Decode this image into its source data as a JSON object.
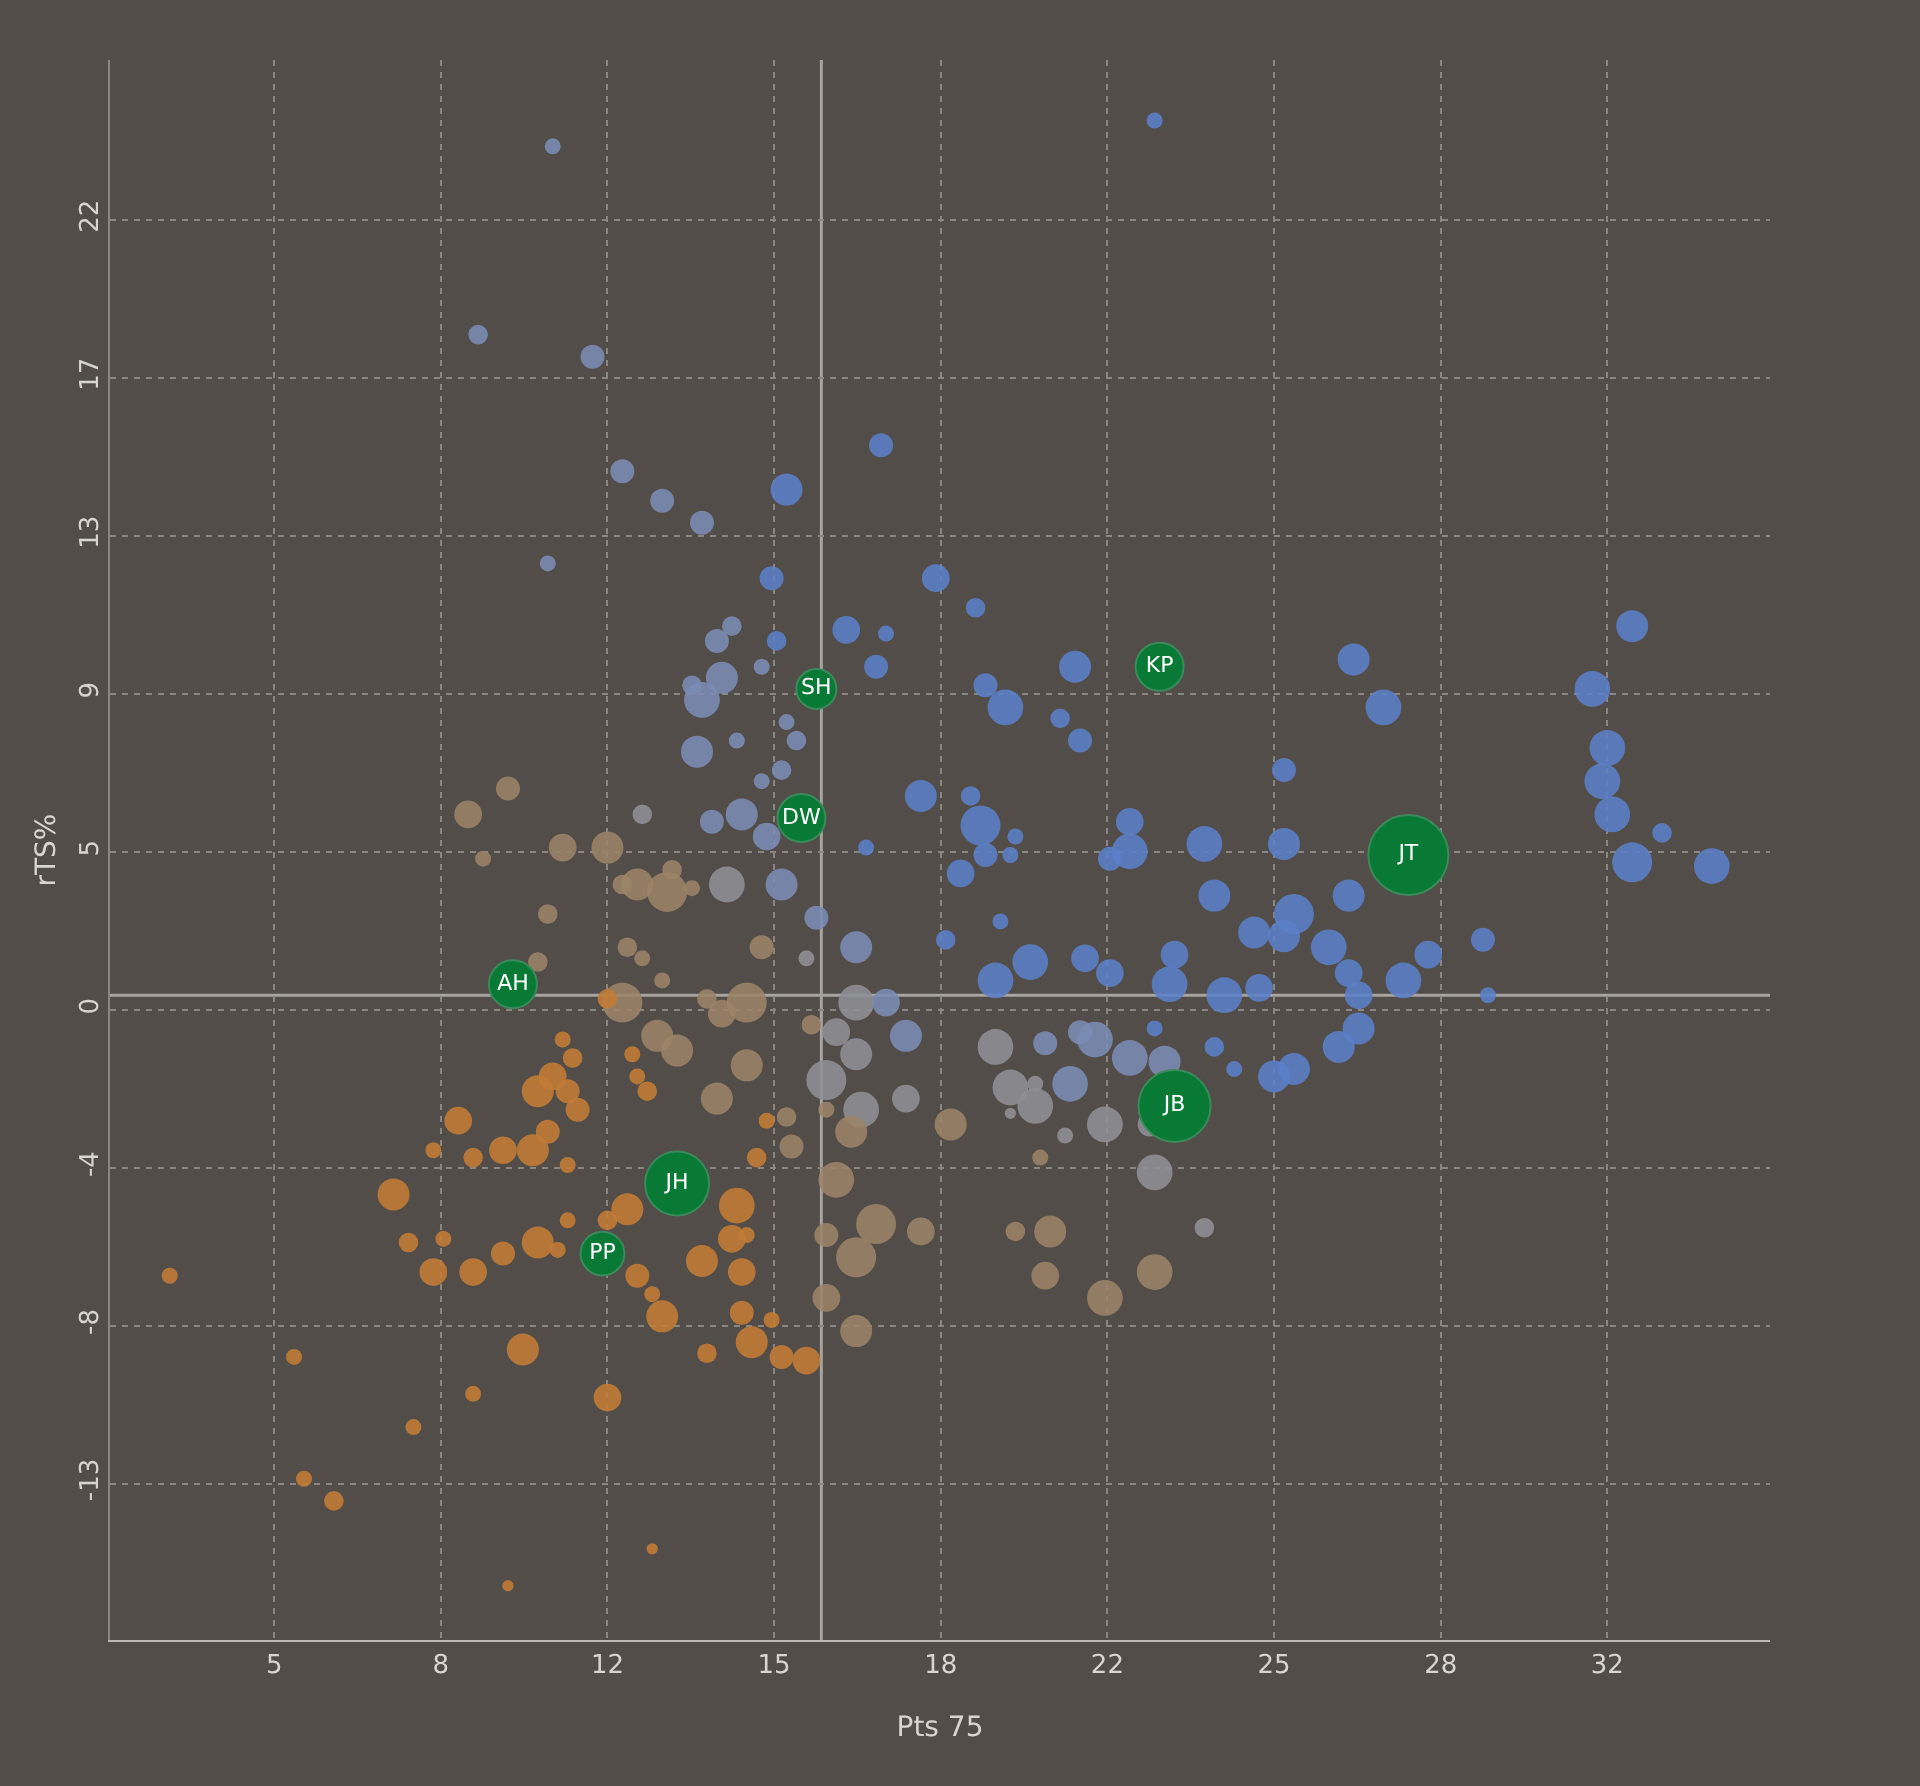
{
  "chart_data": {
    "type": "bubble",
    "xlabel": "Pts 75",
    "ylabel": "rTS%",
    "xlim": [
      1.7,
      35.07
    ],
    "ylim": [
      -16.77,
      26.04
    ],
    "xticks": [
      {
        "value": 5,
        "label": "5"
      },
      {
        "value": 8.35,
        "label": "8"
      },
      {
        "value": 11.7,
        "label": "12"
      },
      {
        "value": 15.05,
        "label": "15"
      },
      {
        "value": 18.4,
        "label": "18"
      },
      {
        "value": 21.75,
        "label": "22"
      },
      {
        "value": 25.1,
        "label": "25"
      },
      {
        "value": 28.45,
        "label": "28"
      },
      {
        "value": 31.8,
        "label": "32"
      }
    ],
    "yticks": [
      {
        "value": -12.54,
        "label": "-13"
      },
      {
        "value": -8.26,
        "label": "-8"
      },
      {
        "value": -3.98,
        "label": "-4"
      },
      {
        "value": 0.3,
        "label": "0"
      },
      {
        "value": 4.58,
        "label": "5"
      },
      {
        "value": 8.86,
        "label": "9"
      },
      {
        "value": 13.14,
        "label": "13"
      },
      {
        "value": 17.42,
        "label": "17"
      },
      {
        "value": 21.7,
        "label": "22"
      }
    ],
    "grid": true,
    "ref_lines": [
      {
        "axis": "x",
        "value": 16.0,
        "color": "#a7a4a0"
      },
      {
        "axis": "y",
        "value": 0.7,
        "color": "#a7a4a0"
      }
    ],
    "series": [
      {
        "x": [
          10.6,
          22.7,
          9.1,
          11.4,
          12.0,
          12.8,
          13.6,
          10.5,
          15.3,
          17.2,
          15.0,
          18.3,
          14.2,
          13.9,
          15.1,
          16.5,
          17.3,
          14.8,
          17.1,
          14.0,
          13.6,
          13.4,
          15.3,
          14.3,
          15.5,
          13.5,
          15.2,
          14.8,
          18.0,
          9.7,
          8.9,
          12.4,
          13.8,
          14.4,
          14.9,
          16.9,
          10.8,
          11.7,
          9.2,
          19.1,
          21.1,
          26.7,
          32.3,
          19.3,
          19.7,
          20.8,
          21.2,
          27.3,
          31.5,
          31.8,
          31.7,
          31.9,
          32.9,
          25.3,
          19.0,
          19.2,
          19.9,
          22.2,
          23.7,
          25.3,
          32.3,
          33.9,
          22.2,
          21.8,
          19.3,
          19.8,
          18.8,
          19.6,
          18.5,
          20.2,
          19.5,
          21.3,
          21.8,
          23.1,
          23.0,
          23.9,
          24.7,
          25.5,
          25.3,
          26.6,
          26.2,
          26.6,
          26.8,
          24.1,
          24.8,
          27.7,
          28.2,
          29.3,
          29.4,
          26.8,
          26.4,
          19.5,
          20.5,
          21.5,
          21.2,
          22.2,
          22.7,
          22.9,
          23.9,
          24.3,
          25.1,
          25.5,
          19.8,
          20.3,
          20.3,
          21.0,
          21.7,
          20.9,
          22.6,
          19.8,
          20.4,
          18.6,
          22.7,
          23.7,
          19.9,
          20.6,
          20.5,
          21.7,
          22.7,
          10.5,
          10.3,
          12.0,
          11.7,
          12.3,
          12.9,
          13.0,
          13.4,
          14.1,
          12.0,
          12.1,
          12.4,
          12.8,
          14.8,
          15.7,
          15.2,
          15.9,
          16.7,
          13.7,
          14.0,
          14.5,
          16.7,
          17.3,
          17.7,
          15.8,
          16.3,
          16.7,
          10.8,
          11.0,
          10.6,
          10.3,
          10.9,
          11.1,
          10.5,
          10.2,
          9.6,
          9.0,
          8.2,
          8.7,
          10.9,
          12.7,
          13.1,
          12.2,
          12.3,
          12.5,
          13.9,
          14.5,
          15.3,
          14.9,
          16.1,
          16.1,
          16.8,
          17.7,
          16.6,
          15.4,
          14.7,
          16.3,
          17.1,
          18.0,
          16.1,
          16.7,
          16.1,
          16.7,
          14.3,
          14.2,
          14.5,
          13.6,
          14.4,
          12.1,
          11.7,
          10.9,
          10.3,
          9.6,
          10.7,
          8.4,
          7.7,
          7.4,
          8.2,
          9.0,
          12.3,
          12.6,
          12.8,
          14.4,
          15.0,
          14.6,
          13.7,
          15.2,
          15.7,
          10.0,
          2.9,
          5.4,
          9.0,
          11.7,
          7.8,
          5.6,
          6.2,
          12.6,
          9.7
        ],
        "values": [
          23.7,
          24.4,
          18.6,
          18.0,
          14.9,
          14.1,
          13.5,
          12.4,
          14.4,
          15.6,
          12.0,
          12.0,
          10.7,
          10.3,
          10.3,
          10.6,
          10.5,
          9.6,
          9.6,
          9.3,
          8.7,
          9.1,
          8.1,
          7.6,
          7.6,
          7.3,
          6.8,
          6.5,
          6.1,
          6.3,
          5.6,
          5.6,
          5.4,
          5.6,
          5.0,
          4.7,
          4.7,
          4.7,
          4.4,
          11.2,
          9.6,
          9.8,
          10.7,
          9.1,
          8.5,
          8.2,
          7.6,
          8.5,
          9.0,
          7.4,
          6.5,
          5.6,
          5.1,
          6.8,
          6.1,
          5.3,
          5.0,
          5.4,
          4.8,
          4.8,
          4.3,
          4.2,
          4.6,
          4.4,
          4.5,
          4.5,
          4.0,
          2.7,
          2.2,
          1.6,
          1.1,
          1.7,
          1.3,
          1.8,
          1.0,
          3.4,
          2.4,
          2.9,
          2.3,
          3.4,
          2.0,
          1.3,
          0.7,
          0.7,
          0.9,
          1.1,
          1.8,
          2.2,
          0.7,
          -0.2,
          -0.7,
          -0.7,
          -0.6,
          -0.5,
          -0.3,
          -1.0,
          -0.2,
          -1.1,
          -0.7,
          -1.3,
          -1.5,
          -1.3,
          -1.8,
          -2.3,
          -1.7,
          -1.7,
          -2.8,
          -3.1,
          -2.8,
          -2.5,
          -3.7,
          -2.8,
          -4.1,
          -5.6,
          -5.7,
          -5.7,
          -6.9,
          -7.5,
          -6.8,
          2.9,
          1.6,
          0.5,
          0.6,
          3.7,
          3.5,
          4.1,
          3.6,
          3.7,
          3.7,
          2.0,
          1.7,
          1.1,
          2.0,
          1.7,
          3.7,
          2.8,
          2.0,
          0.6,
          0.2,
          0.5,
          0.5,
          0.5,
          -0.4,
          -0.1,
          -0.3,
          -0.9,
          -0.5,
          -1.0,
          -1.5,
          -1.9,
          -1.9,
          -2.4,
          -3.0,
          -3.5,
          -3.5,
          -3.7,
          -3.5,
          -2.7,
          -3.9,
          -0.4,
          -0.8,
          -0.9,
          -1.5,
          -1.9,
          -2.1,
          -1.2,
          -2.6,
          -2.7,
          -1.6,
          -2.4,
          -2.4,
          -2.1,
          -3.0,
          -3.4,
          -3.7,
          -4.3,
          -5.5,
          -5.7,
          -5.8,
          -6.4,
          -7.5,
          -8.4,
          -5.0,
          -5.9,
          -5.8,
          -6.5,
          -6.8,
          -5.1,
          -5.4,
          -5.4,
          -6.0,
          -6.3,
          -6.2,
          -5.9,
          -6.0,
          -4.7,
          -6.8,
          -6.8,
          -6.9,
          -7.4,
          -8.0,
          -7.9,
          -8.1,
          -8.7,
          -9.0,
          -9.1,
          -9.2,
          -8.9,
          -6.9,
          -9.1,
          -10.1,
          -10.2,
          -11.0,
          -12.4,
          -13.0,
          -14.3,
          -15.3
        ],
        "sizes": [
          0.04,
          0.04,
          0.06,
          0.09,
          0.09,
          0.09,
          0.09,
          0.04,
          0.16,
          0.09,
          0.09,
          0.12,
          0.06,
          0.09,
          0.06,
          0.12,
          0.04,
          0.04,
          0.09,
          0.16,
          0.2,
          0.06,
          0.04,
          0.04,
          0.06,
          0.16,
          0.06,
          0.04,
          0.16,
          0.09,
          0.12,
          0.06,
          0.09,
          0.16,
          0.12,
          0.04,
          0.12,
          0.16,
          0.04,
          0.06,
          0.16,
          0.16,
          0.16,
          0.09,
          0.2,
          0.06,
          0.09,
          0.2,
          0.2,
          0.2,
          0.2,
          0.2,
          0.06,
          0.09,
          0.06,
          0.25,
          0.04,
          0.12,
          0.2,
          0.16,
          0.25,
          0.2,
          0.2,
          0.09,
          0.09,
          0.04,
          0.12,
          0.04,
          0.06,
          0.2,
          0.2,
          0.12,
          0.12,
          0.12,
          0.2,
          0.16,
          0.16,
          0.25,
          0.16,
          0.16,
          0.2,
          0.12,
          0.12,
          0.2,
          0.12,
          0.2,
          0.12,
          0.09,
          0.04,
          0.16,
          0.16,
          0.2,
          0.09,
          0.2,
          0.09,
          0.2,
          0.04,
          0.16,
          0.06,
          0.04,
          0.16,
          0.16,
          0.2,
          0.2,
          0.04,
          0.2,
          0.2,
          0.04,
          0.09,
          0.02,
          0.04,
          0.16,
          0.2,
          0.06,
          0.06,
          0.16,
          0.12,
          0.2,
          0.2,
          0.06,
          0.06,
          0.25,
          0.06,
          0.16,
          0.25,
          0.06,
          0.04,
          0.2,
          0.06,
          0.06,
          0.04,
          0.04,
          0.09,
          0.04,
          0.16,
          0.09,
          0.16,
          0.06,
          0.12,
          0.25,
          0.2,
          0.12,
          0.16,
          0.06,
          0.12,
          0.16,
          0.04,
          0.06,
          0.12,
          0.16,
          0.09,
          0.09,
          0.09,
          0.16,
          0.12,
          0.06,
          0.04,
          0.12,
          0.04,
          0.16,
          0.16,
          0.04,
          0.04,
          0.06,
          0.16,
          0.16,
          0.06,
          0.04,
          0.25,
          0.04,
          0.2,
          0.12,
          0.16,
          0.09,
          0.06,
          0.2,
          0.25,
          0.12,
          0.09,
          0.25,
          0.12,
          0.16,
          0.2,
          0.12,
          0.04,
          0.16,
          0.12,
          0.16,
          0.06,
          0.04,
          0.16,
          0.09,
          0.04,
          0.04,
          0.06,
          0.16,
          0.12,
          0.12,
          0.09,
          0.04,
          0.16,
          0.09,
          0.04,
          0.16,
          0.06,
          0.09,
          0.12,
          0.16,
          0.04,
          0.04,
          0.04,
          0.12,
          0.04,
          0.04,
          0.06,
          0.02,
          0.02
        ],
        "colors": [
          "#7a8cb4",
          "#5b80c8",
          "#7a8cb4",
          "#7a8cb4",
          "#7a8cb4",
          "#7a8cb4",
          "#7a8cb4",
          "#7a8cb4",
          "#5b80c8",
          "#5b80c8",
          "#5b80c8",
          "#5b80c8",
          "#7a8cb4",
          "#7a8cb4",
          "#5b80c8",
          "#5b80c8",
          "#5b80c8",
          "#7a8cb4",
          "#5b80c8",
          "#7a8cb4",
          "#7a8cb4",
          "#7a8cb4",
          "#7a8cb4",
          "#7a8cb4",
          "#7a8cb4",
          "#7a8cb4",
          "#7a8cb4",
          "#7a8cb4",
          "#5b80c8",
          "#9b8468",
          "#9b8468",
          "#8e8f95",
          "#7a8cb4",
          "#7a8cb4",
          "#7a8cb4",
          "#5b80c8",
          "#9b8468",
          "#9b8468",
          "#9b8468",
          "#5b80c8",
          "#5b80c8",
          "#5b80c8",
          "#5b80c8",
          "#5b80c8",
          "#5b80c8",
          "#5b80c8",
          "#5b80c8",
          "#5b80c8",
          "#5b80c8",
          "#5b80c8",
          "#5b80c8",
          "#5b80c8",
          "#5b80c8",
          "#5b80c8",
          "#5b80c8",
          "#5b80c8",
          "#5b80c8",
          "#5b80c8",
          "#5b80c8",
          "#5b80c8",
          "#5b80c8",
          "#5b80c8",
          "#5b80c8",
          "#5b80c8",
          "#5b80c8",
          "#5b80c8",
          "#5b80c8",
          "#5b80c8",
          "#5b80c8",
          "#5b80c8",
          "#5b80c8",
          "#5b80c8",
          "#5b80c8",
          "#5b80c8",
          "#5b80c8",
          "#5b80c8",
          "#5b80c8",
          "#5b80c8",
          "#5b80c8",
          "#5b80c8",
          "#5b80c8",
          "#5b80c8",
          "#5b80c8",
          "#5b80c8",
          "#5b80c8",
          "#5b80c8",
          "#5b80c8",
          "#5b80c8",
          "#5b80c8",
          "#5b80c8",
          "#5b80c8",
          "#8e8f95",
          "#7a8cb4",
          "#7a8cb4",
          "#7a8cb4",
          "#7a8cb4",
          "#5b80c8",
          "#7a8cb4",
          "#5b80c8",
          "#5b80c8",
          "#5b80c8",
          "#5b80c8",
          "#8e8f95",
          "#8e8f95",
          "#8e8f95",
          "#7a8cb4",
          "#8e8f95",
          "#8e8f95",
          "#8e8f95",
          "#8e8f95",
          "#9b8468",
          "#9b8468",
          "#8e8f95",
          "#8e8f95",
          "#9b8468",
          "#9b8468",
          "#9b8468",
          "#9b8468",
          "#9b8468",
          "#9b8468",
          "#9b8468",
          "#9b8468",
          "#c37c35",
          "#9b8468",
          "#9b8468",
          "#9b8468",
          "#9b8468",
          "#8e8f95",
          "#9b8468",
          "#9b8468",
          "#9b8468",
          "#9b8468",
          "#9b8468",
          "#8e8f95",
          "#7a8cb4",
          "#7a8cb4",
          "#7a8cb4",
          "#9b8468",
          "#9b8468",
          "#9b8468",
          "#8e8f95",
          "#7a8cb4",
          "#7a8cb4",
          "#9b8468",
          "#8e8f95",
          "#8e8f95",
          "#c37c35",
          "#c37c35",
          "#c37c35",
          "#c37c35",
          "#c37c35",
          "#c37c35",
          "#c37c35",
          "#c37c35",
          "#c37c35",
          "#c37c35",
          "#c37c35",
          "#c37c35",
          "#c37c35",
          "#9b8468",
          "#9b8468",
          "#c37c35",
          "#c37c35",
          "#c37c35",
          "#9b8468",
          "#9b8468",
          "#9b8468",
          "#c37c35",
          "#8e8f95",
          "#9b8468",
          "#8e8f95",
          "#8e8f95",
          "#9b8468",
          "#9b8468",
          "#c37c35",
          "#9b8468",
          "#9b8468",
          "#9b8468",
          "#9b8468",
          "#9b8468",
          "#9b8468",
          "#9b8468",
          "#c37c35",
          "#c37c35",
          "#c37c35",
          "#c37c35",
          "#c37c35",
          "#c37c35",
          "#c37c35",
          "#c37c35",
          "#c37c35",
          "#c37c35",
          "#c37c35",
          "#c37c35",
          "#c37c35",
          "#c37c35",
          "#c37c35",
          "#c37c35",
          "#c37c35",
          "#c37c35",
          "#c37c35",
          "#c37c35",
          "#c37c35",
          "#c37c35",
          "#c37c35",
          "#c37c35",
          "#c37c35",
          "#c37c35",
          "#c37c35",
          "#c37c35",
          "#c37c35",
          "#c37c35",
          "#c37c35",
          "#c37c35",
          "#c37c35",
          "#c37c35",
          "#c37c35"
        ]
      },
      {
        "color": "#087a36",
        "x": [
          15.9,
          22.8,
          15.6,
          27.8,
          9.8,
          23.1,
          13.1,
          11.6
        ],
        "values": [
          9.0,
          9.6,
          5.5,
          4.5,
          1.0,
          -2.3,
          -4.4,
          -6.3
        ],
        "sizes": [
          0.25,
          0.36,
          0.36,
          1,
          0.36,
          0.81,
          0.64,
          0.3
        ],
        "value_labels": [
          "SH",
          "KP",
          "DW",
          "JT",
          "AH",
          "JB",
          "JH",
          "PP"
        ]
      }
    ]
  }
}
